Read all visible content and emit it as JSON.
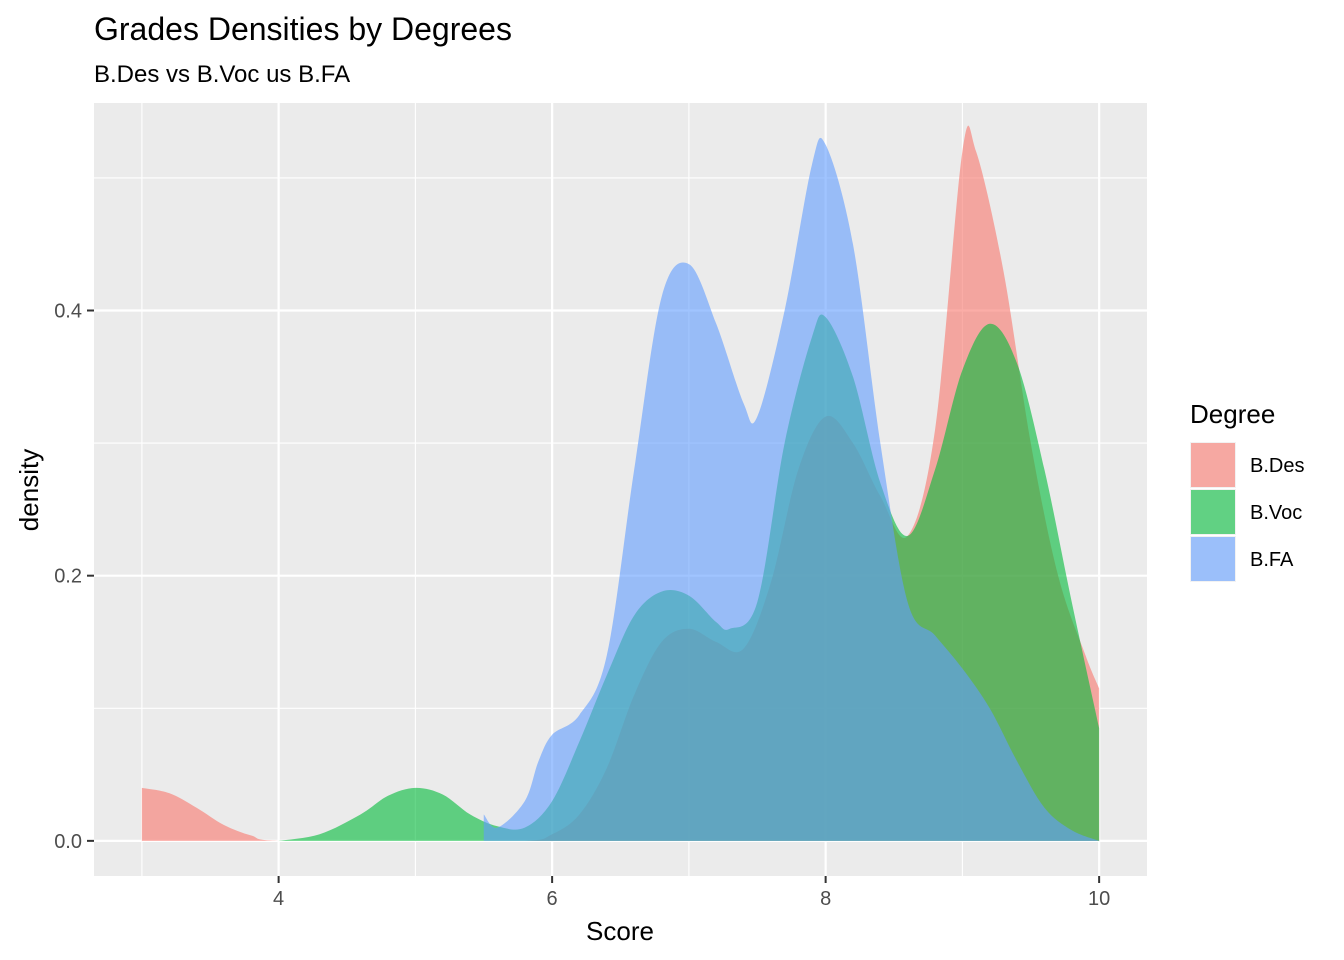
{
  "chart_data": {
    "type": "area",
    "title": "Grades Densities by Degrees",
    "subtitle": "B.Des vs B.Voc us B.FA",
    "xlabel": "Score",
    "ylabel": "density",
    "xlim": [
      2.65,
      10.35
    ],
    "ylim": [
      -0.0265,
      0.5565
    ],
    "x_ticks": [
      4,
      6,
      8,
      10
    ],
    "x_tick_labels": [
      "4",
      "6",
      "8",
      "10"
    ],
    "y_ticks": [
      0.0,
      0.2,
      0.4
    ],
    "y_tick_labels": [
      "0.0",
      "0.2",
      "0.4"
    ],
    "grid": true,
    "legend": {
      "title": "Degree",
      "position": "right"
    },
    "series": [
      {
        "name": "B.Des",
        "color": "#F8766D",
        "points": [
          [
            3.0,
            0.04
          ],
          [
            3.2,
            0.036
          ],
          [
            3.4,
            0.025
          ],
          [
            3.6,
            0.012
          ],
          [
            3.8,
            0.004
          ],
          [
            4.0,
            0.0
          ],
          [
            5.0,
            0.0
          ],
          [
            5.8,
            0.0
          ],
          [
            6.0,
            0.005
          ],
          [
            6.2,
            0.02
          ],
          [
            6.4,
            0.055
          ],
          [
            6.6,
            0.11
          ],
          [
            6.8,
            0.15
          ],
          [
            7.0,
            0.16
          ],
          [
            7.2,
            0.15
          ],
          [
            7.4,
            0.145
          ],
          [
            7.6,
            0.195
          ],
          [
            7.8,
            0.28
          ],
          [
            8.0,
            0.32
          ],
          [
            8.2,
            0.3
          ],
          [
            8.4,
            0.26
          ],
          [
            8.6,
            0.23
          ],
          [
            8.8,
            0.31
          ],
          [
            9.0,
            0.52
          ],
          [
            9.1,
            0.52
          ],
          [
            9.3,
            0.43
          ],
          [
            9.5,
            0.3
          ],
          [
            9.7,
            0.2
          ],
          [
            9.9,
            0.14
          ],
          [
            10.0,
            0.115
          ]
        ]
      },
      {
        "name": "B.Voc",
        "color": "#00BA38",
        "points": [
          [
            4.0,
            0.0
          ],
          [
            4.3,
            0.005
          ],
          [
            4.6,
            0.02
          ],
          [
            4.8,
            0.034
          ],
          [
            5.0,
            0.04
          ],
          [
            5.2,
            0.035
          ],
          [
            5.4,
            0.02
          ],
          [
            5.6,
            0.011
          ],
          [
            5.8,
            0.01
          ],
          [
            6.0,
            0.03
          ],
          [
            6.2,
            0.075
          ],
          [
            6.4,
            0.125
          ],
          [
            6.6,
            0.17
          ],
          [
            6.8,
            0.188
          ],
          [
            7.0,
            0.185
          ],
          [
            7.2,
            0.165
          ],
          [
            7.3,
            0.16
          ],
          [
            7.5,
            0.18
          ],
          [
            7.7,
            0.3
          ],
          [
            7.9,
            0.38
          ],
          [
            8.0,
            0.395
          ],
          [
            8.2,
            0.35
          ],
          [
            8.4,
            0.27
          ],
          [
            8.6,
            0.23
          ],
          [
            8.8,
            0.28
          ],
          [
            9.0,
            0.355
          ],
          [
            9.2,
            0.39
          ],
          [
            9.4,
            0.36
          ],
          [
            9.6,
            0.28
          ],
          [
            9.8,
            0.18
          ],
          [
            10.0,
            0.085
          ]
        ]
      },
      {
        "name": "B.FA",
        "color": "#619CFF",
        "points": [
          [
            5.5,
            0.02
          ],
          [
            5.6,
            0.01
          ],
          [
            5.8,
            0.03
          ],
          [
            5.9,
            0.06
          ],
          [
            6.0,
            0.08
          ],
          [
            6.2,
            0.095
          ],
          [
            6.4,
            0.14
          ],
          [
            6.6,
            0.28
          ],
          [
            6.8,
            0.41
          ],
          [
            7.0,
            0.435
          ],
          [
            7.2,
            0.39
          ],
          [
            7.4,
            0.33
          ],
          [
            7.5,
            0.32
          ],
          [
            7.7,
            0.4
          ],
          [
            7.9,
            0.51
          ],
          [
            8.0,
            0.525
          ],
          [
            8.2,
            0.45
          ],
          [
            8.4,
            0.3
          ],
          [
            8.6,
            0.18
          ],
          [
            8.8,
            0.155
          ],
          [
            9.0,
            0.13
          ],
          [
            9.2,
            0.1
          ],
          [
            9.4,
            0.06
          ],
          [
            9.6,
            0.025
          ],
          [
            9.8,
            0.008
          ],
          [
            10.0,
            0.0
          ]
        ]
      }
    ]
  }
}
